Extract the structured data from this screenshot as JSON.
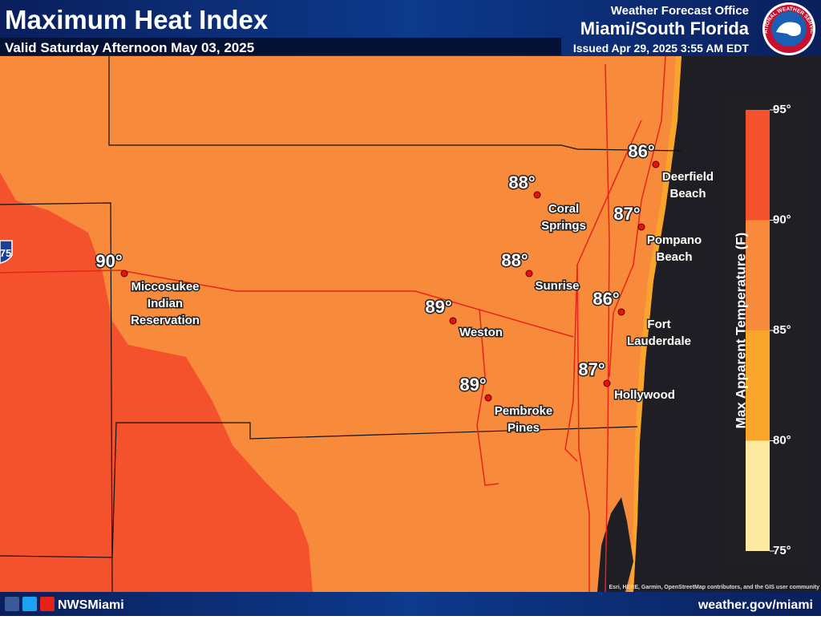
{
  "header": {
    "title": "Maximum Heat Index",
    "valid": "Valid Saturday Afternoon May 03, 2025",
    "office": "Weather Forecast Office",
    "location": "Miami/South Florida",
    "issued": "Issued Apr 29, 2025 3:55 AM EDT",
    "logo": "NATIONAL WEATHER SERVICE"
  },
  "map": {
    "shield": "75",
    "cities": [
      {
        "temp": "86°",
        "name": [
          "Deerfield",
          "Beach"
        ]
      },
      {
        "temp": "88°",
        "name": [
          "Coral",
          "Springs"
        ]
      },
      {
        "temp": "87°",
        "name": [
          "Pompano",
          "Beach"
        ]
      },
      {
        "temp": "90°",
        "name": [
          "Miccosukee",
          "Indian",
          "Reservation"
        ]
      },
      {
        "temp": "88°",
        "name": [
          "Sunrise"
        ]
      },
      {
        "temp": "89°",
        "name": [
          "Weston"
        ]
      },
      {
        "temp": "86°",
        "name": [
          "Fort",
          "Lauderdale"
        ]
      },
      {
        "temp": "87°",
        "name": [
          "Hollywood"
        ]
      },
      {
        "temp": "89°",
        "name": [
          "Pembroke",
          "Pines"
        ]
      }
    ],
    "attribution": "Esri, HERE, Garmin, OpenStreetMap contributors, and the GIS user community"
  },
  "legend": {
    "title": "Max Apparent Temperature (F)",
    "ticks": [
      "95°",
      "90°",
      "85°",
      "80°",
      "75°"
    ],
    "colors": [
      "#f4522c",
      "#f88a3c",
      "#f9a42b",
      "#fdeaa0"
    ]
  },
  "footer": {
    "social": "NWSMiami",
    "url": "weather.gov/miami"
  }
}
